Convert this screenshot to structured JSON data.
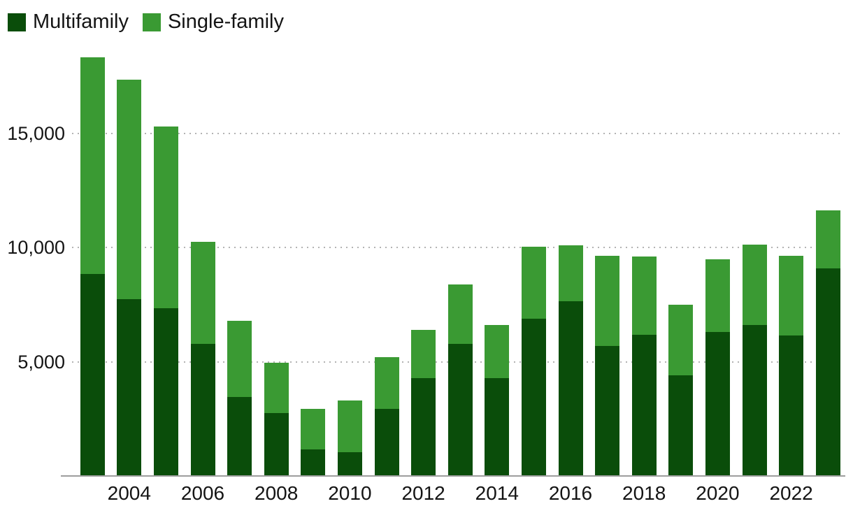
{
  "legend": {
    "items": [
      {
        "label": "Multifamily",
        "color": "#0a4d0a"
      },
      {
        "label": "Single-family",
        "color": "#3a9a33"
      }
    ]
  },
  "chart_data": {
    "type": "bar",
    "stacked": true,
    "title": "",
    "xlabel": "",
    "ylabel": "",
    "categories": [
      2003,
      2004,
      2005,
      2006,
      2007,
      2008,
      2009,
      2010,
      2011,
      2012,
      2013,
      2014,
      2015,
      2016,
      2017,
      2018,
      2019,
      2020,
      2021,
      2022,
      2023
    ],
    "series": [
      {
        "name": "Multifamily",
        "color": "#0a4d0a",
        "values": [
          8850,
          7750,
          7350,
          5800,
          3450,
          2750,
          1150,
          1050,
          2950,
          4300,
          5800,
          4300,
          6900,
          7650,
          5700,
          6200,
          4400,
          6300,
          6600,
          6150,
          9100
        ]
      },
      {
        "name": "Single-family",
        "color": "#3a9a33",
        "values": [
          9500,
          9600,
          7950,
          4450,
          3350,
          2200,
          1800,
          2250,
          2250,
          2100,
          2600,
          2300,
          3150,
          2450,
          3950,
          3400,
          3100,
          3200,
          3550,
          3500,
          2550
        ]
      }
    ],
    "totals": [
      18350,
      17350,
      15300,
      10250,
      6800,
      4950,
      2950,
      3300,
      5200,
      6400,
      8400,
      6600,
      10050,
      10100,
      9650,
      9600,
      7500,
      9500,
      10150,
      9650,
      11650
    ],
    "ylim": [
      0,
      18500
    ],
    "yticks": [
      {
        "value": 5000,
        "label": "5,000"
      },
      {
        "value": 10000,
        "label": "10,000"
      },
      {
        "value": 15000,
        "label": "15,000"
      }
    ],
    "xtick_labels": [
      "2004",
      "2006",
      "2008",
      "2010",
      "2012",
      "2014",
      "2016",
      "2018",
      "2020",
      "2022"
    ],
    "grid": "horizontal-dotted",
    "legend_position": "top-left"
  },
  "colors": {
    "background": "#ffffff",
    "axis_line": "#9e9e9e",
    "gridline": "#b3b3b3",
    "text": "#141414"
  }
}
